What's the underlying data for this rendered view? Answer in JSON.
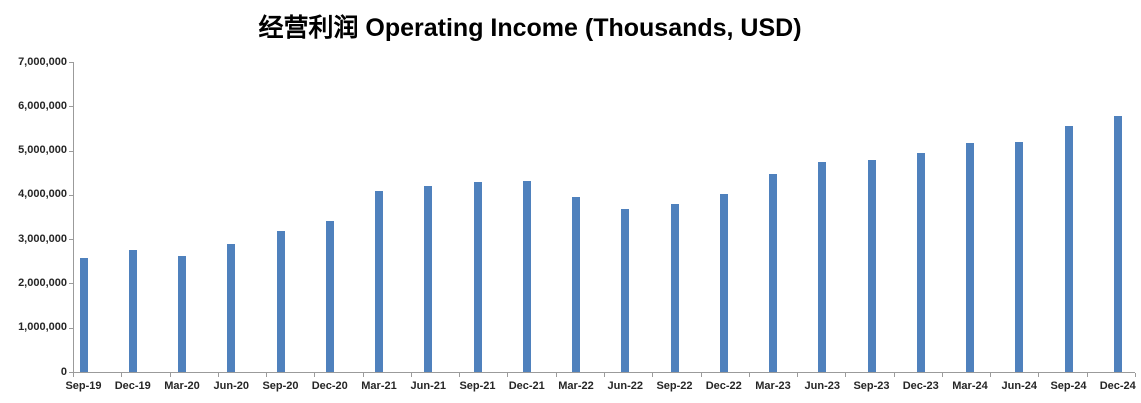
{
  "chart_data": {
    "type": "bar",
    "title": "经营利润 Operating Income (Thousands, USD)",
    "xlabel": "",
    "ylabel": "",
    "categories": [
      "Sep-19",
      "Dec-19",
      "Mar-20",
      "Jun-20",
      "Sep-20",
      "Dec-20",
      "Mar-21",
      "Jun-21",
      "Sep-21",
      "Dec-21",
      "Mar-22",
      "Jun-22",
      "Sep-22",
      "Dec-22",
      "Mar-23",
      "Jun-23",
      "Sep-23",
      "Dec-23",
      "Mar-24",
      "Jun-24",
      "Sep-24",
      "Dec-24"
    ],
    "values": [
      2570000,
      2760000,
      2620000,
      2890000,
      3190000,
      3410000,
      4090000,
      4200000,
      4280000,
      4320000,
      3960000,
      3690000,
      3800000,
      4030000,
      4460000,
      4750000,
      4790000,
      4940000,
      5160000,
      5200000,
      5560000,
      5780000
    ],
    "ylim": [
      0,
      7000000
    ],
    "ytick_step": 1000000,
    "ytick_labels": [
      "0",
      "1,000,000",
      "2,000,000",
      "3,000,000",
      "4,000,000",
      "5,000,000",
      "6,000,000",
      "7,000,000"
    ],
    "grid": false,
    "legend": "none",
    "bar_color": "#4f81bd",
    "axis_color": "#9b9b9b",
    "text_color": "#262626",
    "title_color": "#000000",
    "background": "#ffffff"
  }
}
